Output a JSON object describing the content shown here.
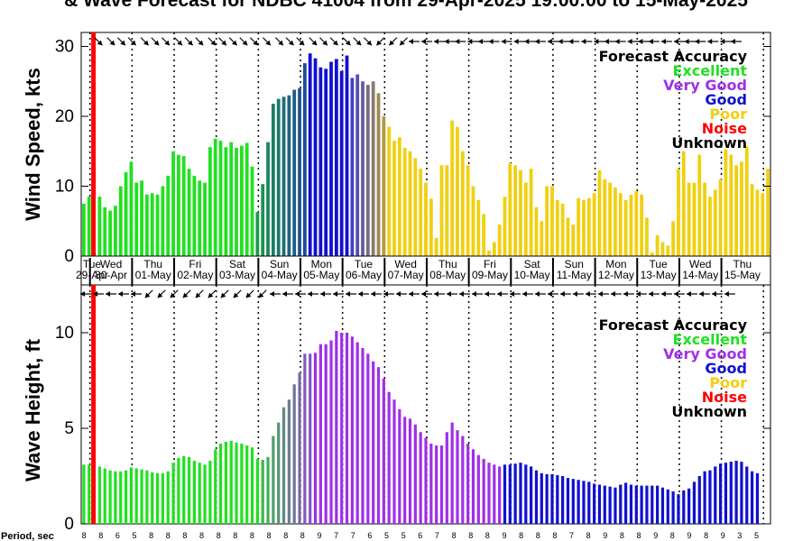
{
  "title": "& Wave Forecast for NDBC 41004 from 29-Apr-2025 19:00:00 to 15-May-2025",
  "colors": {
    "excellent": "#22e022",
    "verygood": "#a030e8",
    "good": "#1010d0",
    "poor": "#f0d010",
    "noise": "#ff0000",
    "unknown": "#000000"
  },
  "legend": {
    "title": "Forecast Accuracy",
    "items": [
      {
        "label": "Excellent",
        "key": "excellent"
      },
      {
        "label": "Very Good",
        "key": "verygood"
      },
      {
        "label": "Good",
        "key": "good"
      },
      {
        "label": "Poor",
        "key": "poor"
      },
      {
        "label": "Noise",
        "key": "noise"
      },
      {
        "label": "Unknown",
        "key": "unknown"
      }
    ]
  },
  "date_labels": [
    {
      "day": "Tue",
      "date": "29-Apr"
    },
    {
      "day": "Wed",
      "date": "30-Apr"
    },
    {
      "day": "Thu",
      "date": "01-May"
    },
    {
      "day": "Fri",
      "date": "02-May"
    },
    {
      "day": "Sat",
      "date": "03-May"
    },
    {
      "day": "Sun",
      "date": "04-May"
    },
    {
      "day": "Mon",
      "date": "05-May"
    },
    {
      "day": "Tue",
      "date": "06-May"
    },
    {
      "day": "Wed",
      "date": "07-May"
    },
    {
      "day": "Thu",
      "date": "08-May"
    },
    {
      "day": "Fri",
      "date": "09-May"
    },
    {
      "day": "Sat",
      "date": "10-May"
    },
    {
      "day": "Sun",
      "date": "11-May"
    },
    {
      "day": "Mon",
      "date": "12-May"
    },
    {
      "day": "Tue",
      "date": "13-May"
    },
    {
      "day": "Wed",
      "date": "14-May"
    },
    {
      "day": "Thu",
      "date": "15-May"
    }
  ],
  "period_label": "Period, sec",
  "chart_data": [
    {
      "type": "bar",
      "ylabel": "Wind Speed, kts",
      "ylim": [
        0,
        32
      ],
      "yticks": [
        0,
        10,
        20,
        30
      ],
      "bar_width_frac": 0.65,
      "now_marker_hours": 2,
      "values": [
        7.5,
        8.5,
        0.5,
        8.5,
        7.0,
        6.5,
        7.2,
        10.0,
        12.0,
        13.5,
        10.5,
        10.8,
        8.8,
        9.0,
        8.8,
        10.0,
        11.5,
        15.0,
        14.5,
        14.3,
        12.5,
        11.5,
        10.8,
        10.5,
        15.6,
        16.8,
        16.5,
        15.6,
        16.3,
        15.5,
        15.8,
        16.2,
        12.8,
        6.3,
        10.3,
        16.3,
        21.8,
        22.5,
        22.8,
        23.0,
        23.8,
        24.0,
        27.6,
        29.0,
        28.3,
        27.0,
        26.8,
        27.8,
        28.2,
        26.5,
        28.7,
        25.5,
        26.0,
        25.0,
        24.5,
        25.0,
        23.3,
        20.0,
        18.5,
        16.5,
        17.0,
        15.5,
        15.0,
        14.0,
        12.5,
        10.5,
        8.2,
        2.6,
        13.0,
        13.0,
        19.4,
        18.5,
        15.0,
        13.0,
        10.0,
        8.0,
        6.0,
        0.8,
        2.0,
        4.5,
        8.5,
        13.3,
        13.0,
        12.3,
        10.5,
        12.5,
        7.0,
        5.0,
        10.0,
        10.0,
        8.0,
        7.5,
        5.5,
        4.5,
        8.3,
        8.0,
        8.3,
        9.0,
        12.3,
        11.0,
        10.5,
        9.8,
        9.0,
        8.0,
        8.8,
        9.3,
        8.8,
        5.5,
        0.5,
        3.0,
        2.0,
        1.5,
        5.0,
        12.5,
        15.0,
        10.5,
        10.5,
        14.5,
        10.5,
        8.5,
        9.5,
        11.0,
        15.3,
        14.5,
        13.0,
        13.5,
        15.7,
        10.3,
        9.5,
        9.0,
        12.5
      ],
      "accuracy": "EEEEEEEEEEEEEEEEEEEEEEEEEEEEEEEEEEEEEEEEEEEGGGGGGGGGGGGGGPPPPPPPPPPPPPPPPPPPPPPPPPPPPPPPPPPPPPPPPPPPPPPPPPPPPPPPPPPPPPPPPPPPPPPPPPP",
      "transition": [
        [
          33,
          42,
          "#1a9a4a",
          "#1e4a9a"
        ],
        [
          51,
          57,
          "#4040c8",
          "#b09a40"
        ]
      ]
    },
    {
      "type": "bar",
      "ylabel": "Wave Height, ft",
      "ylim": [
        0,
        12.5
      ],
      "yticks": [
        0,
        5,
        10
      ],
      "bar_width_frac": 0.55,
      "now_marker_hours": 2,
      "values": [
        3.1,
        3.1,
        0.0,
        3.0,
        2.9,
        2.8,
        2.75,
        2.75,
        2.8,
        2.95,
        2.9,
        2.85,
        2.8,
        2.7,
        2.65,
        2.65,
        2.75,
        3.2,
        3.45,
        3.55,
        3.5,
        3.3,
        3.2,
        3.1,
        3.3,
        3.9,
        4.2,
        4.3,
        4.35,
        4.25,
        4.2,
        4.1,
        4.0,
        3.4,
        3.35,
        3.5,
        4.6,
        5.3,
        6.1,
        6.5,
        7.3,
        7.9,
        8.9,
        8.9,
        8.95,
        9.4,
        9.4,
        9.6,
        10.1,
        10.0,
        10.0,
        9.8,
        9.5,
        9.2,
        8.9,
        8.5,
        8.2,
        7.6,
        6.9,
        6.5,
        6.0,
        5.6,
        5.5,
        5.2,
        4.8,
        4.5,
        4.2,
        4.1,
        4.1,
        4.8,
        5.3,
        4.9,
        4.6,
        4.2,
        3.9,
        3.6,
        3.4,
        3.2,
        3.1,
        3.0,
        3.1,
        3.1,
        3.15,
        3.2,
        3.1,
        3.0,
        2.8,
        2.65,
        2.6,
        2.6,
        2.55,
        2.5,
        2.4,
        2.35,
        2.3,
        2.25,
        2.2,
        2.1,
        2.05,
        2.0,
        1.95,
        1.9,
        2.05,
        2.15,
        2.05,
        2.0,
        2.0,
        2.0,
        2.0,
        2.0,
        1.9,
        1.8,
        1.7,
        1.55,
        1.75,
        1.85,
        2.2,
        2.5,
        2.75,
        2.8,
        3.0,
        3.15,
        3.2,
        3.25,
        3.3,
        3.25,
        3.0,
        2.75,
        2.65
      ],
      "accuracy": "EEEEEEEEEEEEEEEEEEEEEEEEEEEEEEEEEEVVVVVVVVVVVVVVVVVVVVVVVVVVVVVVVVVVVVVVVVVVVVVVGGGGGGGGGGGGGGGGGGGGGGGGGGGGGGGGGGGGGGGGGGGGGGGGGGG",
      "transition": [
        [
          34,
          43,
          "#3ab84a",
          "#8a50c8"
        ]
      ]
    }
  ],
  "wind_dirs": [
    200,
    200,
    200,
    210,
    220,
    225,
    230,
    225,
    210,
    200,
    200,
    200,
    210,
    220,
    225,
    225,
    230,
    230,
    230,
    235,
    235,
    240,
    240,
    220,
    200,
    200,
    200,
    190,
    190,
    185,
    180,
    180,
    200,
    190,
    215,
    220,
    225,
    225,
    225,
    225,
    230,
    230,
    225,
    225,
    225,
    225,
    230,
    230,
    230,
    235,
    240,
    260,
    270,
    280,
    280,
    280,
    290,
    300,
    300,
    300,
    305,
    315,
    330,
    350,
    20,
    40,
    60,
    70,
    90,
    90,
    90,
    90,
    90,
    90,
    90,
    90,
    90,
    90,
    90,
    90,
    90,
    90,
    90,
    90,
    90,
    90,
    90,
    90,
    90,
    90,
    90,
    90,
    90,
    90,
    90,
    90,
    90,
    90,
    90,
    90,
    90,
    90,
    90,
    90,
    90,
    90,
    90,
    90,
    90,
    90,
    90,
    90,
    90,
    90,
    90,
    90,
    90,
    90,
    90,
    90,
    90,
    90,
    90,
    90,
    90,
    90,
    90,
    90,
    90,
    90,
    90
  ],
  "wind_arrows": [
    {
      "pos": 0.3,
      "angle": 135
    },
    {
      "pos": 0.7,
      "angle": 45
    },
    {
      "pos": 1.0,
      "angle": 45
    },
    {
      "pos": 1.25,
      "angle": 45
    },
    {
      "pos": 1.5,
      "angle": 45
    },
    {
      "pos": 1.8,
      "angle": 45
    },
    {
      "pos": 2.05,
      "angle": 45
    },
    {
      "pos": 2.3,
      "angle": 45
    },
    {
      "pos": 2.6,
      "angle": 45
    },
    {
      "pos": 2.85,
      "angle": 45
    },
    {
      "pos": 3.1,
      "angle": 45
    },
    {
      "pos": 3.4,
      "angle": 45
    },
    {
      "pos": 3.65,
      "angle": 45
    },
    {
      "pos": 3.9,
      "angle": 45
    },
    {
      "pos": 4.15,
      "angle": 45
    },
    {
      "pos": 4.4,
      "angle": 45
    },
    {
      "pos": 4.7,
      "angle": 45
    },
    {
      "pos": 5.0,
      "angle": 45
    },
    {
      "pos": 5.25,
      "angle": 45
    },
    {
      "pos": 5.5,
      "angle": 45
    },
    {
      "pos": 5.8,
      "angle": 45
    },
    {
      "pos": 6.05,
      "angle": 45
    },
    {
      "pos": 6.3,
      "angle": 45
    },
    {
      "pos": 6.6,
      "angle": 45
    },
    {
      "pos": 6.85,
      "angle": 45
    },
    {
      "pos": 7.1,
      "angle": 45
    },
    {
      "pos": 7.4,
      "angle": 135
    },
    {
      "pos": 7.7,
      "angle": 135
    },
    {
      "pos": 7.95,
      "angle": 135
    },
    {
      "pos": 8.2,
      "angle": 180
    },
    {
      "pos": 8.5,
      "angle": 180
    },
    {
      "pos": 8.8,
      "angle": 180
    },
    {
      "pos": 9.05,
      "angle": 180
    },
    {
      "pos": 9.3,
      "angle": 180
    },
    {
      "pos": 9.6,
      "angle": 180
    },
    {
      "pos": 9.85,
      "angle": 180
    },
    {
      "pos": 10.1,
      "angle": 180
    },
    {
      "pos": 10.4,
      "angle": 180
    },
    {
      "pos": 10.7,
      "angle": 180
    },
    {
      "pos": 10.95,
      "angle": 180
    },
    {
      "pos": 11.2,
      "angle": 180
    },
    {
      "pos": 11.5,
      "angle": 180
    },
    {
      "pos": 11.75,
      "angle": 180
    },
    {
      "pos": 12.0,
      "angle": 180
    },
    {
      "pos": 12.3,
      "angle": 180
    },
    {
      "pos": 12.6,
      "angle": 180
    },
    {
      "pos": 12.85,
      "angle": 180
    },
    {
      "pos": 13.1,
      "angle": 180
    },
    {
      "pos": 13.4,
      "angle": 180
    },
    {
      "pos": 13.65,
      "angle": 180
    },
    {
      "pos": 13.9,
      "angle": 180
    },
    {
      "pos": 14.2,
      "angle": 180
    },
    {
      "pos": 14.5,
      "angle": 180
    },
    {
      "pos": 14.75,
      "angle": 180
    },
    {
      "pos": 15.0,
      "angle": 180
    },
    {
      "pos": 15.3,
      "angle": 180
    },
    {
      "pos": 15.6,
      "angle": 180
    },
    {
      "pos": 15.85,
      "angle": 180
    }
  ],
  "wave_arrows": [
    {
      "pos": 0.1,
      "angle": 180
    },
    {
      "pos": 0.4,
      "angle": 180
    },
    {
      "pos": 0.7,
      "angle": 180
    },
    {
      "pos": 1.0,
      "angle": 180
    },
    {
      "pos": 1.3,
      "angle": 180
    },
    {
      "pos": 1.6,
      "angle": 180
    },
    {
      "pos": 1.9,
      "angle": 135
    },
    {
      "pos": 2.2,
      "angle": 135
    },
    {
      "pos": 2.5,
      "angle": 135
    },
    {
      "pos": 2.8,
      "angle": 135
    },
    {
      "pos": 3.1,
      "angle": 135
    },
    {
      "pos": 3.4,
      "angle": 135
    },
    {
      "pos": 3.7,
      "angle": 135
    },
    {
      "pos": 4.0,
      "angle": 135
    },
    {
      "pos": 4.3,
      "angle": 135
    },
    {
      "pos": 4.6,
      "angle": 135
    },
    {
      "pos": 4.9,
      "angle": 180
    },
    {
      "pos": 5.2,
      "angle": 180
    },
    {
      "pos": 5.5,
      "angle": 180
    },
    {
      "pos": 5.8,
      "angle": 180
    },
    {
      "pos": 6.1,
      "angle": 180
    },
    {
      "pos": 6.4,
      "angle": 180
    },
    {
      "pos": 6.7,
      "angle": 180
    },
    {
      "pos": 7.0,
      "angle": 180
    },
    {
      "pos": 7.3,
      "angle": 180
    },
    {
      "pos": 7.6,
      "angle": 180
    },
    {
      "pos": 7.9,
      "angle": 180
    },
    {
      "pos": 8.2,
      "angle": 180
    },
    {
      "pos": 8.5,
      "angle": 180
    },
    {
      "pos": 8.8,
      "angle": 180
    },
    {
      "pos": 9.1,
      "angle": 180
    },
    {
      "pos": 9.4,
      "angle": 180
    },
    {
      "pos": 9.7,
      "angle": 180
    },
    {
      "pos": 10.0,
      "angle": 180
    },
    {
      "pos": 10.3,
      "angle": 180
    },
    {
      "pos": 10.6,
      "angle": 180
    },
    {
      "pos": 10.9,
      "angle": 180
    },
    {
      "pos": 11.2,
      "angle": 180
    },
    {
      "pos": 11.5,
      "angle": 180
    },
    {
      "pos": 11.8,
      "angle": 180
    },
    {
      "pos": 12.1,
      "angle": 180
    },
    {
      "pos": 12.4,
      "angle": 180
    },
    {
      "pos": 12.7,
      "angle": 180
    },
    {
      "pos": 13.0,
      "angle": 180
    },
    {
      "pos": 13.3,
      "angle": 180
    },
    {
      "pos": 13.6,
      "angle": 180
    },
    {
      "pos": 13.9,
      "angle": 180
    },
    {
      "pos": 14.2,
      "angle": 180
    },
    {
      "pos": 14.5,
      "angle": 180
    },
    {
      "pos": 14.8,
      "angle": 180
    },
    {
      "pos": 15.1,
      "angle": 180
    },
    {
      "pos": 15.4,
      "angle": 180
    },
    {
      "pos": 15.7,
      "angle": 180
    }
  ],
  "periods": [
    "8",
    "8",
    "8",
    "8",
    "7",
    "7",
    "6",
    "5",
    "5",
    "5",
    "5",
    "5",
    "8",
    "8",
    "9",
    "8",
    "8",
    "8",
    "8",
    "8",
    "8",
    "8",
    "8",
    "8",
    "8",
    "8",
    "8",
    "8",
    "8",
    "8",
    "8",
    "8",
    "8",
    "8",
    "8",
    "7",
    "8",
    "8",
    "8",
    "8",
    "8",
    "8",
    "9",
    "8",
    "8",
    "7",
    "7",
    "7",
    "7",
    "7",
    "7",
    "6",
    "6",
    "6",
    "5",
    "5",
    "5",
    "5",
    "6",
    "6",
    "6",
    "7",
    "7",
    "7",
    "8",
    "8",
    "8",
    "8",
    "8",
    "8",
    "9",
    "8",
    "8",
    "8",
    "9",
    "9",
    "8",
    "8",
    "8",
    "8",
    "8",
    "8",
    "8",
    "8",
    "8",
    "7",
    "7",
    "7",
    "7",
    "7",
    "8",
    "8",
    "9",
    "9",
    "9",
    "9",
    "8",
    "8",
    "8",
    "8",
    "8",
    "9",
    "9",
    "8",
    "8",
    "8",
    "8",
    "9",
    "9",
    "8",
    "8",
    "8",
    "8",
    "8",
    "9",
    "9",
    "9",
    "3",
    "5",
    "5",
    "5",
    "5",
    "5"
  ]
}
